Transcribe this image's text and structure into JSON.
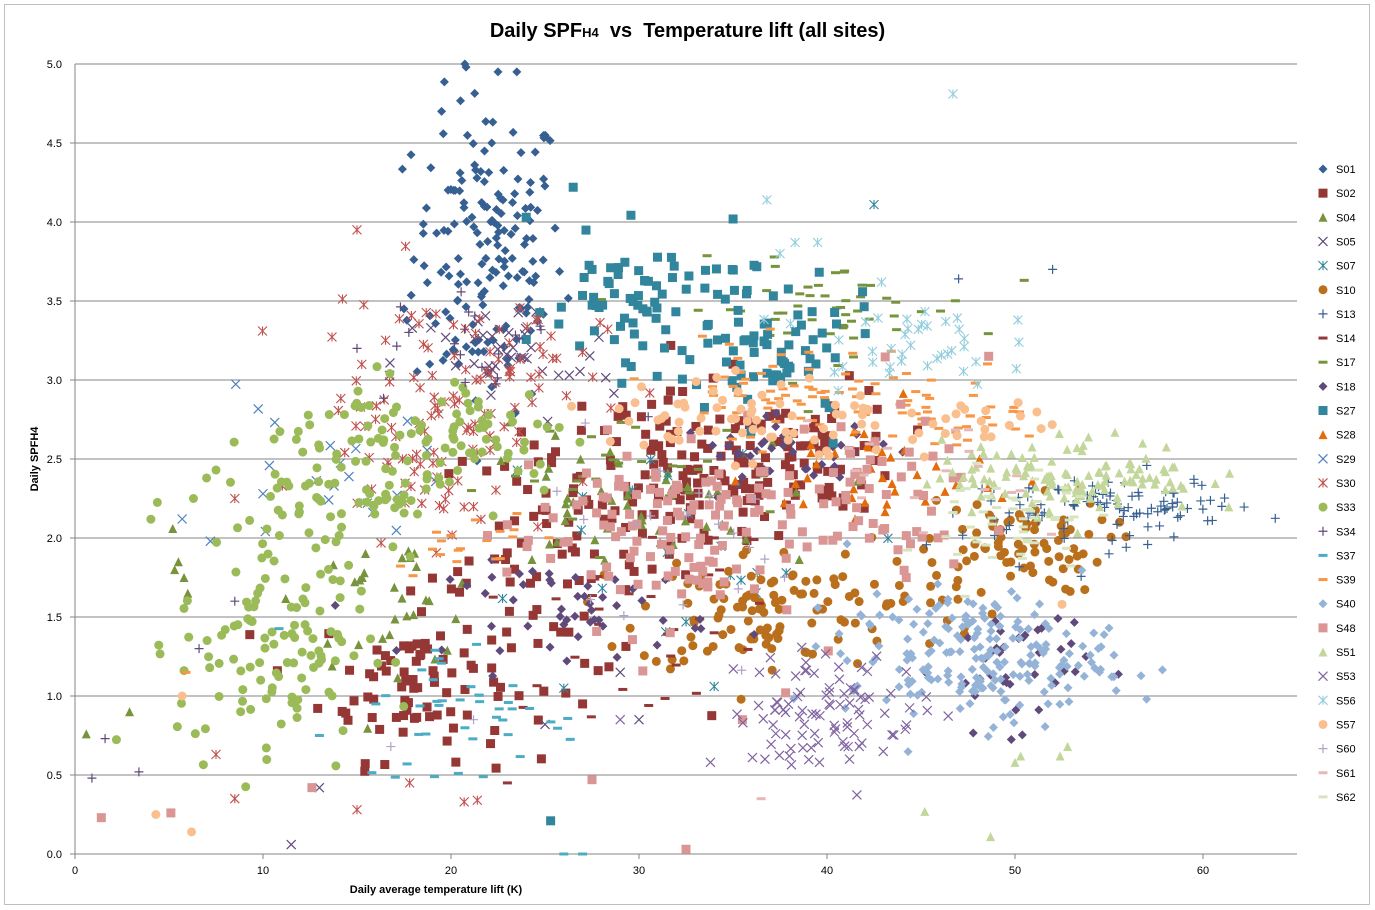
{
  "chart_data": {
    "type": "scatter",
    "title_parts": [
      "Daily SPF",
      "H4",
      "  vs  Temperature lift (all sites)"
    ],
    "xlabel": "Daily average temperature lift (K)",
    "ylabel": "Daily SPFH4",
    "xlim": [
      0,
      65
    ],
    "ylim": [
      0,
      5
    ],
    "x_ticks": [
      "0",
      "10",
      "20",
      "30",
      "40",
      "50",
      "60"
    ],
    "y_ticks": [
      "0.0",
      "0.5",
      "1.0",
      "1.5",
      "2.0",
      "2.5",
      "3.0",
      "3.5",
      "4.0",
      "4.5",
      "5.0"
    ],
    "grid": "horizontal",
    "legend": "right",
    "series": [
      {
        "name": "S01",
        "marker": "diamond",
        "color": "#376092",
        "clusters": [
          [
            22,
            3.8,
            2,
            0.5,
            170
          ]
        ],
        "points": [
          [
            20.8,
            4.98
          ],
          [
            22.5,
            4.95
          ],
          [
            23.5,
            4.95
          ],
          [
            19.5,
            4.7
          ],
          [
            17.5,
            3.45
          ]
        ]
      },
      {
        "name": "S02",
        "marker": "square",
        "color": "#953735",
        "clusters": [
          [
            18,
            1.1,
            2.5,
            0.25,
            80
          ],
          [
            26,
            1.9,
            3.5,
            0.4,
            90
          ],
          [
            33,
            2.4,
            3,
            0.25,
            100
          ],
          [
            40,
            2.55,
            2,
            0.2,
            60
          ]
        ],
        "points": [
          [
            35,
            3.1
          ],
          [
            27,
            0.95
          ]
        ]
      },
      {
        "name": "S04",
        "marker": "triangle",
        "color": "#77933c",
        "clusters": [
          [
            17,
            1.6,
            2.5,
            0.2,
            30
          ],
          [
            29,
            2.2,
            4,
            0.2,
            50
          ]
        ],
        "points": [
          [
            0.6,
            0.76
          ],
          [
            2.9,
            0.9
          ],
          [
            5.2,
            2.06
          ],
          [
            5.5,
            1.85
          ],
          [
            5.8,
            1.75
          ],
          [
            6,
            1.65
          ],
          [
            5.3,
            1.8
          ]
        ]
      },
      {
        "name": "S05",
        "marker": "x",
        "color": "#604a7b",
        "clusters": [
          [
            23,
            3.1,
            3,
            0.2,
            40
          ]
        ],
        "points": [
          [
            11.5,
            0.06
          ],
          [
            13,
            0.42
          ],
          [
            30,
            0.85
          ],
          [
            29,
            1.15
          ],
          [
            25,
            0.82
          ]
        ]
      },
      {
        "name": "S07",
        "marker": "asterisk",
        "color": "#31859c",
        "clusters": [
          [
            33,
            2.0,
            6,
            0.4,
            20
          ]
        ],
        "points": [
          [
            42.5,
            4.11
          ],
          [
            34,
            1.06
          ],
          [
            26,
            1.05
          ]
        ]
      },
      {
        "name": "S10",
        "marker": "circle",
        "color": "#b96f1b",
        "clusters": [
          [
            36,
            1.55,
            3,
            0.2,
            90
          ],
          [
            50,
            1.95,
            2.5,
            0.15,
            70
          ],
          [
            43,
            1.65,
            3,
            0.2,
            40
          ]
        ],
        "points": []
      },
      {
        "name": "S13",
        "marker": "plus",
        "color": "#376092",
        "clusters": [
          [
            57,
            2.2,
            3,
            0.08,
            60
          ],
          [
            52,
            2.15,
            3,
            0.15,
            40
          ]
        ],
        "points": [
          [
            47,
            3.64
          ],
          [
            52,
            3.7
          ],
          [
            55,
            1.9
          ],
          [
            61,
            2.2
          ]
        ]
      },
      {
        "name": "S14",
        "marker": "dash",
        "color": "#953735",
        "clusters": [
          [
            30,
            1.5,
            4,
            0.3,
            30
          ]
        ],
        "points": [
          [
            23,
            0.45
          ],
          [
            34,
            1.4
          ]
        ]
      },
      {
        "name": "S17",
        "marker": "dash",
        "color": "#77933c",
        "clusters": [
          [
            40,
            3.45,
            4,
            0.15,
            50
          ],
          [
            30,
            2.4,
            4,
            0.2,
            30
          ]
        ],
        "points": [
          [
            39,
            2.8
          ]
        ]
      },
      {
        "name": "S18",
        "marker": "diamond",
        "color": "#604a7b",
        "clusters": [
          [
            27,
            1.55,
            3.5,
            0.15,
            50
          ],
          [
            38,
            2.55,
            3,
            0.1,
            40
          ],
          [
            50,
            1.2,
            2,
            0.2,
            40
          ]
        ],
        "points": []
      },
      {
        "name": "S27",
        "marker": "square",
        "color": "#31859c",
        "clusters": [
          [
            31,
            3.5,
            3.5,
            0.2,
            80
          ],
          [
            37,
            3.1,
            3,
            0.2,
            60
          ]
        ],
        "points": [
          [
            26.5,
            4.22
          ],
          [
            24,
            4.03
          ],
          [
            25.3,
            0.21
          ]
        ]
      },
      {
        "name": "S28",
        "marker": "triangle",
        "color": "#e46c0a",
        "clusters": [
          [
            43,
            2.4,
            3.5,
            0.2,
            40
          ]
        ],
        "points": []
      },
      {
        "name": "S29",
        "marker": "x",
        "color": "#4f81bd",
        "clusters": [
          [
            13,
            2.35,
            3,
            0.25,
            20
          ]
        ],
        "points": [
          [
            7.2,
            1.98
          ],
          [
            10,
            2.28
          ]
        ]
      },
      {
        "name": "S30",
        "marker": "asterisk",
        "color": "#c0504d",
        "clusters": [
          [
            19,
            2.8,
            3,
            0.4,
            90
          ],
          [
            22,
            3.0,
            3,
            0.3,
            40
          ]
        ],
        "points": [
          [
            15,
            3.95
          ],
          [
            8.5,
            0.35
          ],
          [
            15,
            0.28
          ],
          [
            20.7,
            0.33
          ],
          [
            21.4,
            0.34
          ],
          [
            17.8,
            0.45
          ],
          [
            7.5,
            0.63
          ],
          [
            8.5,
            2.25
          ]
        ]
      },
      {
        "name": "S33",
        "marker": "circle",
        "color": "#9bbb59",
        "clusters": [
          [
            10.5,
            1.4,
            2.5,
            0.45,
            130
          ],
          [
            15,
            2.45,
            2.5,
            0.3,
            80
          ],
          [
            21.5,
            2.65,
            2.5,
            0.2,
            60
          ]
        ],
        "points": [
          [
            7.5,
            2.43
          ],
          [
            7,
            2.38
          ],
          [
            6.3,
            2.25
          ]
        ]
      },
      {
        "name": "S34",
        "marker": "plus",
        "color": "#604a7b",
        "clusters": [
          [
            22,
            3.2,
            3,
            0.2,
            20
          ]
        ],
        "points": [
          [
            0.9,
            0.48
          ],
          [
            1.6,
            0.73
          ],
          [
            3.4,
            0.52
          ],
          [
            15,
            3.2
          ],
          [
            6.6,
            1.3
          ],
          [
            8.5,
            1.6
          ]
        ]
      },
      {
        "name": "S37",
        "marker": "dash",
        "color": "#4bacc6",
        "clusters": [
          [
            21,
            0.9,
            3,
            0.25,
            40
          ]
        ],
        "points": [
          [
            16,
            0.95
          ],
          [
            13,
            0.75
          ],
          [
            26,
            0
          ],
          [
            27,
            0
          ]
        ]
      },
      {
        "name": "S39",
        "marker": "dash",
        "color": "#f79646",
        "clusters": [
          [
            39,
            2.95,
            4,
            0.15,
            70
          ],
          [
            46,
            2.75,
            3,
            0.1,
            30
          ],
          [
            21,
            2.0,
            2,
            0.1,
            20
          ]
        ],
        "points": [
          [
            5.9,
            1.15
          ]
        ]
      },
      {
        "name": "S40",
        "marker": "diamond",
        "color": "#95b3d7",
        "clusters": [
          [
            48,
            1.25,
            3.5,
            0.2,
            200
          ]
        ],
        "points": [
          [
            55,
            1.43
          ],
          [
            57,
            0.98
          ]
        ]
      },
      {
        "name": "S48",
        "marker": "square",
        "color": "#d99694",
        "clusters": [
          [
            31,
            2.05,
            4,
            0.3,
            120
          ],
          [
            42,
            2.25,
            3,
            0.25,
            60
          ]
        ],
        "points": [
          [
            1.4,
            0.23
          ],
          [
            5.1,
            0.26
          ],
          [
            12.6,
            0.42
          ],
          [
            27.5,
            0.47
          ],
          [
            32.5,
            0.03
          ],
          [
            48.6,
            3.15
          ],
          [
            37.8,
            1.02
          ],
          [
            35.5,
            0.85
          ]
        ]
      },
      {
        "name": "S51",
        "marker": "triangle",
        "color": "#c3d69b",
        "clusters": [
          [
            53,
            2.4,
            3.5,
            0.12,
            120
          ]
        ],
        "points": [
          [
            45.2,
            0.27
          ],
          [
            48.7,
            0.11
          ],
          [
            50,
            0.58
          ],
          [
            50.3,
            0.62
          ],
          [
            52.4,
            0.62
          ],
          [
            52.8,
            0.68
          ],
          [
            58,
            2.42
          ]
        ]
      },
      {
        "name": "S53",
        "marker": "x",
        "color": "#8064a2",
        "clusters": [
          [
            40,
            0.92,
            2.5,
            0.18,
            90
          ]
        ],
        "points": [
          [
            33.8,
            0.58
          ],
          [
            36.7,
            0.6
          ],
          [
            38,
            0.62
          ],
          [
            39.6,
            0.58
          ],
          [
            41.2,
            0.6
          ],
          [
            29,
            0.85
          ]
        ]
      },
      {
        "name": "S56",
        "marker": "asterisk",
        "color": "#92cddc",
        "clusters": [
          [
            44,
            3.25,
            2.5,
            0.15,
            40
          ]
        ],
        "points": [
          [
            46.7,
            4.81
          ],
          [
            36.8,
            4.14
          ],
          [
            38.3,
            3.87
          ],
          [
            39.5,
            3.87
          ],
          [
            37.5,
            3.8
          ]
        ]
      },
      {
        "name": "S57",
        "marker": "circle",
        "color": "#fabf8f",
        "clusters": [
          [
            36,
            2.75,
            4,
            0.15,
            70
          ],
          [
            48,
            2.75,
            2.5,
            0.1,
            20
          ]
        ],
        "points": [
          [
            4.3,
            0.25
          ],
          [
            6.2,
            0.14
          ],
          [
            5.7,
            1.0
          ],
          [
            52.5,
            1.58
          ]
        ]
      },
      {
        "name": "S60",
        "marker": "plus",
        "color": "#b3a2c7",
        "clusters": [
          [
            33,
            2.1,
            4,
            0.3,
            20
          ]
        ],
        "points": [
          [
            16.8,
            0.68
          ],
          [
            21.2,
            0.85
          ]
        ]
      },
      {
        "name": "S61",
        "marker": "dash",
        "color": "#e6b9b8",
        "clusters": [
          [
            45,
            2.3,
            3,
            0.2,
            20
          ]
        ],
        "points": [
          [
            36.5,
            0.35
          ]
        ]
      },
      {
        "name": "S62",
        "marker": "dash",
        "color": "#d7e4bd",
        "clusters": [
          [
            50,
            2.1,
            2,
            0.2,
            50
          ]
        ],
        "points": []
      }
    ]
  }
}
